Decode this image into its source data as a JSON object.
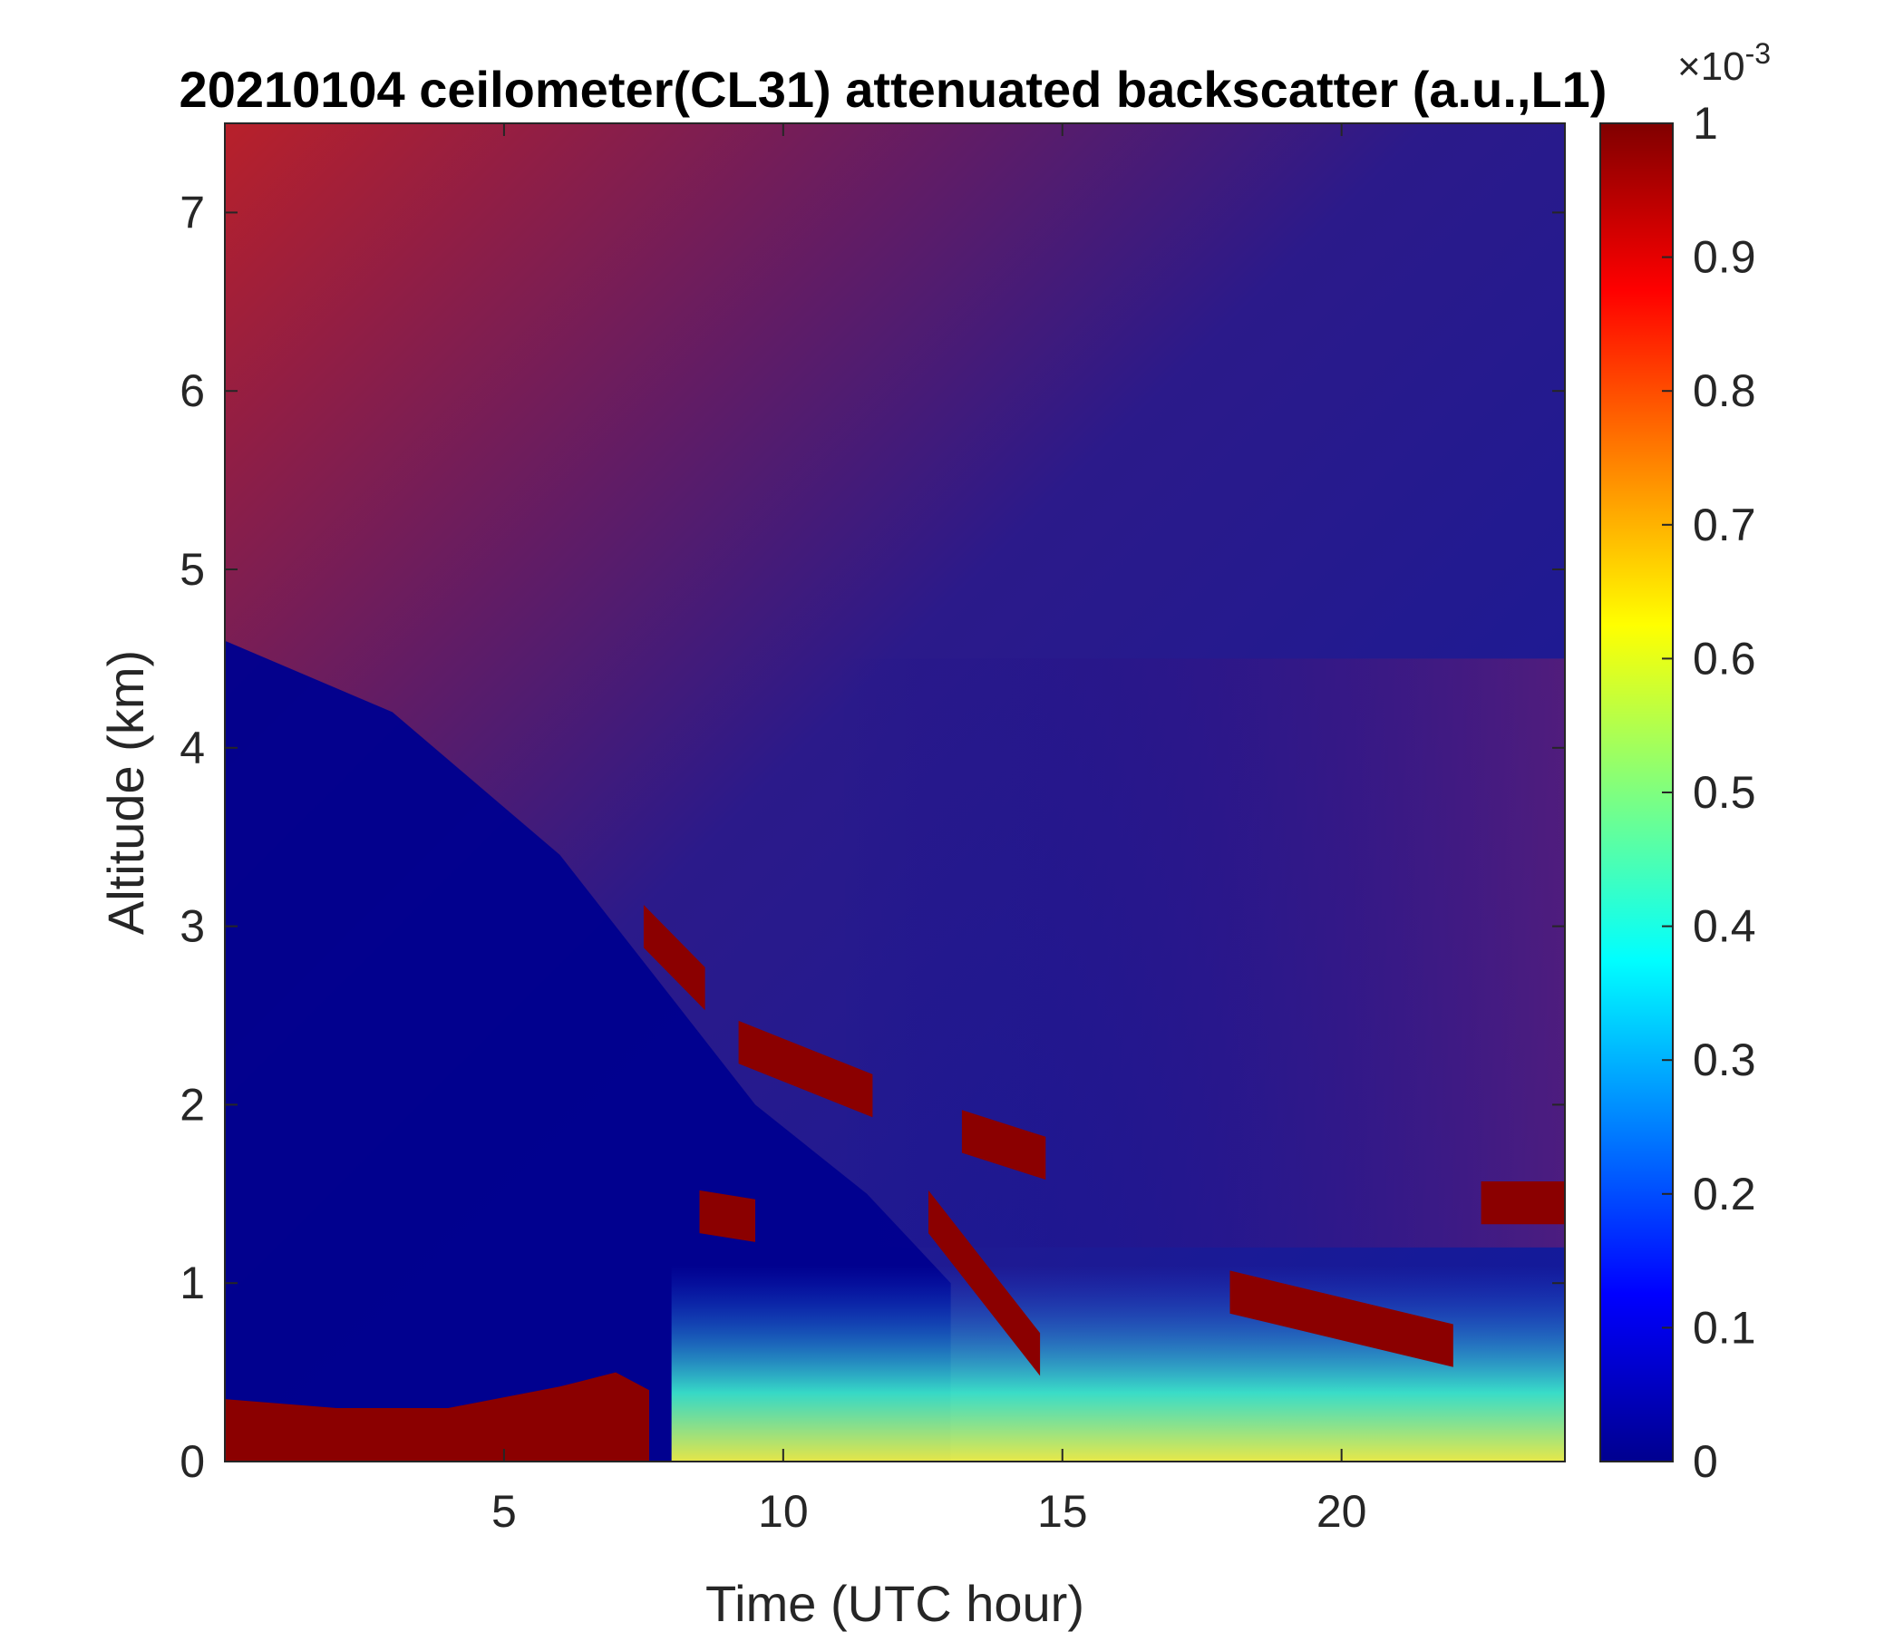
{
  "chart_data": {
    "type": "heatmap",
    "title": "20210104 ceilometer(CL31) attenuated backscatter (a.u.,L1)",
    "xlabel": "Time (UTC hour)",
    "ylabel": "Altitude (km)",
    "xlim": [
      0,
      24
    ],
    "ylim": [
      0,
      7.5
    ],
    "xticks": [
      5,
      10,
      15,
      20
    ],
    "yticks": [
      0,
      1,
      2,
      3,
      4,
      5,
      6,
      7
    ],
    "colorbar": {
      "colormap": "jet",
      "clim": [
        0,
        1
      ],
      "ticks": [
        0,
        0.1,
        0.2,
        0.3,
        0.4,
        0.5,
        0.6,
        0.7,
        0.8,
        0.9,
        1
      ],
      "tick_labels": [
        "0",
        "0.1",
        "0.2",
        "0.3",
        "0.4",
        "0.5",
        "0.6",
        "0.7",
        "0.8",
        "0.9",
        "1"
      ],
      "multiplier_base": "×10",
      "multiplier_exponent": "-3"
    },
    "features": {
      "surface_layer": [
        {
          "t": 0,
          "top_km": 0.35
        },
        {
          "t": 2,
          "top_km": 0.3
        },
        {
          "t": 4,
          "top_km": 0.3
        },
        {
          "t": 6,
          "top_km": 0.42
        },
        {
          "t": 7,
          "top_km": 0.5
        }
      ],
      "cloud_segments": [
        {
          "t0": 7.5,
          "t1": 8.6,
          "h0": 3.0,
          "h1": 2.65
        },
        {
          "t0": 9.2,
          "t1": 11.6,
          "h0": 2.35,
          "h1": 2.05
        },
        {
          "t0": 13.2,
          "t1": 14.7,
          "h0": 1.85,
          "h1": 1.7
        },
        {
          "t0": 8.5,
          "t1": 9.5,
          "h0": 1.4,
          "h1": 1.35
        },
        {
          "t0": 12.6,
          "t1": 14.6,
          "h0": 1.4,
          "h1": 0.6
        },
        {
          "t0": 18.0,
          "t1": 22.0,
          "h0": 0.95,
          "h1": 0.65
        },
        {
          "t0": 22.5,
          "t1": 24.0,
          "h0": 1.45,
          "h1": 1.45
        }
      ]
    },
    "grid": false
  }
}
